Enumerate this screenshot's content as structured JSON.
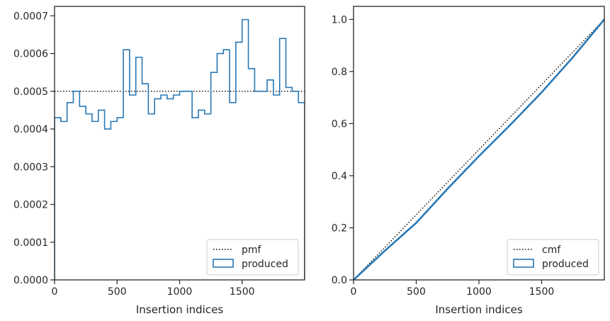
{
  "colors": {
    "series": "#2878b5",
    "reference": "#000000",
    "axes": "#262626",
    "background": "#ffffff"
  },
  "chart_data": [
    {
      "type": "line",
      "subtype": "step-histogram",
      "xlabel": "Insertion indices",
      "ylabel": "",
      "xlim": [
        0,
        2000
      ],
      "ylim": [
        0,
        0.000725
      ],
      "x_ticks": [
        "0",
        "500",
        "1000",
        "1500"
      ],
      "y_ticks": [
        "0.0000",
        "0.0001",
        "0.0002",
        "0.0003",
        "0.0004",
        "0.0005",
        "0.0006",
        "0.0007"
      ],
      "grid": false,
      "legend": {
        "placement": "lower-right",
        "entries": [
          "pmf",
          "produced"
        ]
      },
      "bin_width": 50,
      "series": [
        {
          "name": "pmf",
          "style": "dotted",
          "x": [
            0,
            2000
          ],
          "values": [
            0.0005,
            0.0005
          ]
        },
        {
          "name": "produced",
          "style": "step-outline",
          "bin_edges": [
            0,
            50,
            100,
            150,
            200,
            250,
            300,
            350,
            400,
            450,
            500,
            550,
            600,
            650,
            700,
            750,
            800,
            850,
            900,
            950,
            1000,
            1050,
            1100,
            1150,
            1200,
            1250,
            1300,
            1350,
            1400,
            1450,
            1500,
            1550,
            1600,
            1650,
            1700,
            1750,
            1800,
            1850,
            1900,
            1950,
            2000
          ],
          "values": [
            0.00043,
            0.00042,
            0.00047,
            0.0005,
            0.00046,
            0.00044,
            0.00042,
            0.00045,
            0.0004,
            0.00042,
            0.00043,
            0.00061,
            0.00049,
            0.00059,
            0.00052,
            0.00044,
            0.00048,
            0.00049,
            0.00048,
            0.00049,
            0.0005,
            0.0005,
            0.00043,
            0.00045,
            0.00044,
            0.00055,
            0.0006,
            0.00061,
            0.00047,
            0.00063,
            0.00069,
            0.00056,
            0.0005,
            0.0005,
            0.00053,
            0.00049,
            0.00064,
            0.00051,
            0.0005,
            0.00047
          ]
        }
      ]
    },
    {
      "type": "line",
      "xlabel": "Insertion indices",
      "ylabel": "",
      "xlim": [
        0,
        2000
      ],
      "ylim": [
        0,
        1.05
      ],
      "x_ticks": [
        "0",
        "500",
        "1000",
        "1500"
      ],
      "y_ticks": [
        "0.0",
        "0.2",
        "0.4",
        "0.6",
        "0.8",
        "1.0"
      ],
      "grid": false,
      "legend": {
        "placement": "lower-right",
        "entries": [
          "cmf",
          "produced"
        ]
      },
      "series": [
        {
          "name": "cmf",
          "style": "dotted",
          "x": [
            0,
            2000
          ],
          "values": [
            0,
            1.0
          ]
        },
        {
          "name": "produced",
          "style": "solid",
          "x": [
            0,
            250,
            500,
            750,
            1000,
            1250,
            1500,
            1750,
            2000
          ],
          "values": [
            0,
            0.112,
            0.219,
            0.35,
            0.475,
            0.595,
            0.72,
            0.855,
            1.0
          ]
        }
      ]
    }
  ]
}
